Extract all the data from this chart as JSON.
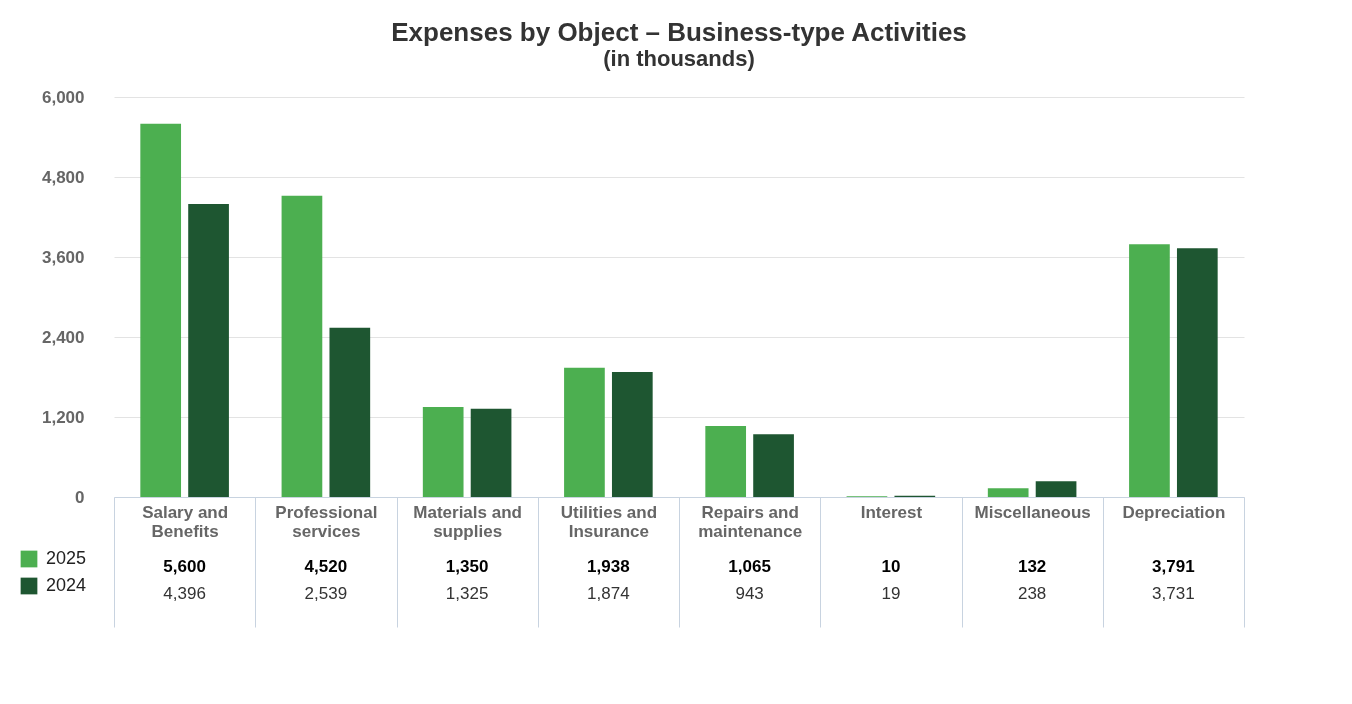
{
  "chart_data": {
    "type": "bar",
    "title": "Expenses by Object – Business-type Activities",
    "subtitle": "(in thousands)",
    "categories": [
      "Salary and Benefits",
      "Professional services",
      "Materials and supplies",
      "Utilities and Insurance",
      "Repairs and maintenance",
      "Interest",
      "Miscellaneous",
      "Depreciation"
    ],
    "series": [
      {
        "name": "2025",
        "color": "#4caf50",
        "values": [
          5600,
          4520,
          1350,
          1938,
          1065,
          10,
          132,
          3791
        ],
        "value_labels": [
          "5,600",
          "4,520",
          "1,350",
          "1,938",
          "1,065",
          "10",
          "132",
          "3,791"
        ]
      },
      {
        "name": "2024",
        "color": "#1e5631",
        "values": [
          4396,
          2539,
          1325,
          1874,
          943,
          19,
          238,
          3731
        ],
        "value_labels": [
          "4,396",
          "2,539",
          "1,325",
          "1,874",
          "943",
          "19",
          "238",
          "3,731"
        ]
      }
    ],
    "ylim": [
      0,
      6000
    ],
    "yticks": [
      {
        "value": 0,
        "label": "0"
      },
      {
        "value": 1200,
        "label": "1,200"
      },
      {
        "value": 2400,
        "label": "2,400"
      },
      {
        "value": 3600,
        "label": "3,600"
      },
      {
        "value": 4800,
        "label": "4,800"
      },
      {
        "value": 6000,
        "label": "6,000"
      }
    ],
    "grid": "y",
    "legend": "bottom left"
  }
}
